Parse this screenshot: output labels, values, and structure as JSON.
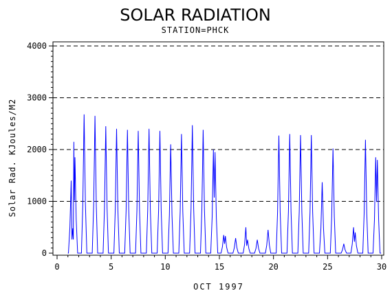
{
  "chart_data": {
    "type": "line",
    "title": "SOLAR RADIATION",
    "subtitle": "STATION=PHCK",
    "xlabel": "OCT 1997",
    "ylabel": "Solar Rad. KJoules/M2",
    "xlim": [
      0,
      30
    ],
    "ylim": [
      0,
      4000
    ],
    "x_ticks": [
      0,
      5,
      10,
      15,
      20,
      25,
      30
    ],
    "y_ticks": [
      0,
      1000,
      2000,
      3000,
      4000
    ],
    "grid": "horizontal dashed",
    "series": [
      {
        "color": "#0000ff",
        "daily_peaks": [
          {
            "day": 1,
            "peaks": [
              [
                1.3,
                1400
              ],
              [
                1.45,
                480
              ],
              [
                1.55,
                2150
              ],
              [
                1.65,
                1850
              ]
            ]
          },
          {
            "day": 2,
            "peaks": [
              [
                2.5,
                2680
              ]
            ]
          },
          {
            "day": 3,
            "peaks": [
              [
                3.5,
                2650
              ]
            ]
          },
          {
            "day": 4,
            "peaks": [
              [
                4.5,
                2450
              ]
            ]
          },
          {
            "day": 5,
            "peaks": [
              [
                5.5,
                2400
              ]
            ]
          },
          {
            "day": 6,
            "peaks": [
              [
                6.5,
                2380
              ]
            ]
          },
          {
            "day": 7,
            "peaks": [
              [
                7.5,
                2360
              ]
            ]
          },
          {
            "day": 8,
            "peaks": [
              [
                8.5,
                2400
              ]
            ]
          },
          {
            "day": 9,
            "peaks": [
              [
                9.5,
                2360
              ]
            ]
          },
          {
            "day": 10,
            "peaks": [
              [
                10.5,
                2100
              ]
            ]
          },
          {
            "day": 11,
            "peaks": [
              [
                11.5,
                2300
              ]
            ]
          },
          {
            "day": 12,
            "peaks": [
              [
                12.5,
                2470
              ]
            ]
          },
          {
            "day": 13,
            "peaks": [
              [
                13.5,
                2380
              ]
            ]
          },
          {
            "day": 14,
            "peaks": [
              [
                14.45,
                2000
              ],
              [
                14.6,
                1950
              ]
            ]
          },
          {
            "day": 15,
            "peaks": [
              [
                15.4,
                350
              ],
              [
                15.55,
                330
              ]
            ]
          },
          {
            "day": 16,
            "peaks": [
              [
                16.5,
                290
              ]
            ]
          },
          {
            "day": 17,
            "peaks": [
              [
                17.45,
                500
              ],
              [
                17.6,
                260
              ]
            ]
          },
          {
            "day": 18,
            "peaks": [
              [
                18.5,
                260
              ]
            ]
          },
          {
            "day": 19,
            "peaks": [
              [
                19.5,
                450
              ]
            ]
          },
          {
            "day": 20,
            "peaks": [
              [
                20.5,
                2270
              ]
            ]
          },
          {
            "day": 21,
            "peaks": [
              [
                21.5,
                2300
              ]
            ]
          },
          {
            "day": 22,
            "peaks": [
              [
                22.5,
                2280
              ]
            ]
          },
          {
            "day": 23,
            "peaks": [
              [
                23.5,
                2280
              ]
            ]
          },
          {
            "day": 24,
            "peaks": [
              [
                24.5,
                1370
              ]
            ]
          },
          {
            "day": 25,
            "peaks": [
              [
                25.5,
                2020
              ]
            ]
          },
          {
            "day": 26,
            "peaks": [
              [
                26.5,
                180
              ]
            ]
          },
          {
            "day": 27,
            "peaks": [
              [
                27.4,
                500
              ],
              [
                27.55,
                400
              ]
            ]
          },
          {
            "day": 28,
            "peaks": [
              [
                28.5,
                2190
              ]
            ]
          },
          {
            "day": 29,
            "peaks": [
              [
                29.45,
                1850
              ],
              [
                29.6,
                1800
              ]
            ]
          }
        ]
      }
    ]
  }
}
